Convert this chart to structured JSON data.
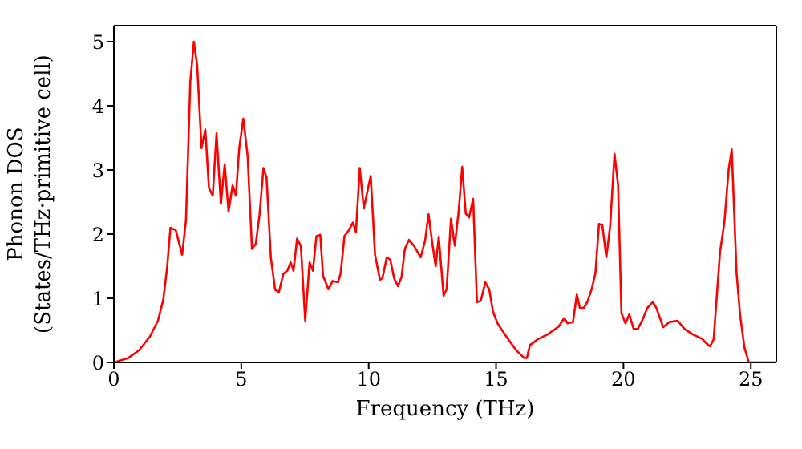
{
  "chart_data": {
    "type": "line",
    "xlabel": "Frequency (THz)",
    "ylabel": "Phonon DOS\n(States/THz·primitive cell)",
    "xlim": [
      0,
      26
    ],
    "ylim": [
      0,
      5.25
    ],
    "xticks": [
      0,
      5,
      10,
      15,
      20,
      25
    ],
    "yticks": [
      0,
      1,
      2,
      3,
      4,
      5
    ],
    "marker": "none",
    "line_style": "solid",
    "series": [
      {
        "color": "#ff0000",
        "x": [
          0,
          0.57,
          0.99,
          1.41,
          1.73,
          1.94,
          2.09,
          2.22,
          2.43,
          2.68,
          2.83,
          3.0,
          3.14,
          3.27,
          3.44,
          3.59,
          3.73,
          3.88,
          4.03,
          4.2,
          4.35,
          4.5,
          4.66,
          4.79,
          4.92,
          5.08,
          5.25,
          5.42,
          5.57,
          5.72,
          5.87,
          5.99,
          6.16,
          6.33,
          6.48,
          6.65,
          6.81,
          6.94,
          7.05,
          7.19,
          7.34,
          7.51,
          7.68,
          7.81,
          7.95,
          8.1,
          8.21,
          8.42,
          8.59,
          8.8,
          8.9,
          9.05,
          9.22,
          9.38,
          9.5,
          9.65,
          9.81,
          10.08,
          10.25,
          10.44,
          10.54,
          10.71,
          10.85,
          11.0,
          11.15,
          11.29,
          11.42,
          11.58,
          11.79,
          12.04,
          12.21,
          12.35,
          12.5,
          12.63,
          12.75,
          12.94,
          13.06,
          13.23,
          13.38,
          13.54,
          13.67,
          13.81,
          13.94,
          14.1,
          14.25,
          14.4,
          14.58,
          14.73,
          14.88,
          15.06,
          15.27,
          15.48,
          15.79,
          16.1,
          16.21,
          16.33,
          16.63,
          17.04,
          17.46,
          17.67,
          17.81,
          18.02,
          18.17,
          18.29,
          18.44,
          18.58,
          18.75,
          18.9,
          19.04,
          19.17,
          19.33,
          19.48,
          19.65,
          19.79,
          19.92,
          20.08,
          20.23,
          20.4,
          20.56,
          20.73,
          20.94,
          21.15,
          21.29,
          21.56,
          21.81,
          22.13,
          22.4,
          22.71,
          23.08,
          23.25,
          23.4,
          23.54,
          23.79,
          23.96,
          24.13,
          24.25,
          24.44,
          24.58,
          24.75,
          24.92,
          26
        ],
        "values": [
          0,
          0.07,
          0.19,
          0.4,
          0.65,
          0.98,
          1.48,
          2.1,
          2.06,
          1.68,
          2.22,
          4.38,
          5.0,
          4.63,
          3.34,
          3.63,
          2.72,
          2.6,
          3.57,
          2.47,
          3.09,
          2.35,
          2.76,
          2.6,
          3.34,
          3.8,
          3.22,
          1.77,
          1.85,
          2.31,
          3.03,
          2.89,
          1.64,
          1.13,
          1.1,
          1.38,
          1.43,
          1.56,
          1.43,
          1.93,
          1.81,
          0.65,
          1.56,
          1.43,
          1.97,
          1.99,
          1.35,
          1.14,
          1.27,
          1.25,
          1.39,
          1.97,
          2.06,
          2.18,
          2.03,
          3.03,
          2.4,
          2.91,
          1.68,
          1.29,
          1.31,
          1.64,
          1.6,
          1.31,
          1.19,
          1.33,
          1.77,
          1.91,
          1.81,
          1.64,
          1.89,
          2.31,
          1.85,
          1.5,
          1.96,
          1.04,
          1.14,
          2.24,
          1.82,
          2.39,
          3.05,
          2.32,
          2.26,
          2.55,
          0.94,
          0.96,
          1.25,
          1.14,
          0.79,
          0.61,
          0.48,
          0.36,
          0.19,
          0.07,
          0.07,
          0.27,
          0.36,
          0.44,
          0.56,
          0.69,
          0.61,
          0.63,
          1.06,
          0.85,
          0.85,
          0.94,
          1.14,
          1.39,
          2.16,
          2.14,
          1.64,
          2.14,
          3.25,
          2.76,
          0.77,
          0.61,
          0.75,
          0.52,
          0.52,
          0.65,
          0.85,
          0.94,
          0.85,
          0.55,
          0.63,
          0.65,
          0.52,
          0.44,
          0.37,
          0.3,
          0.25,
          0.36,
          1.72,
          2.18,
          3.01,
          3.32,
          1.39,
          0.73,
          0.23,
          0,
          0
        ]
      }
    ]
  }
}
